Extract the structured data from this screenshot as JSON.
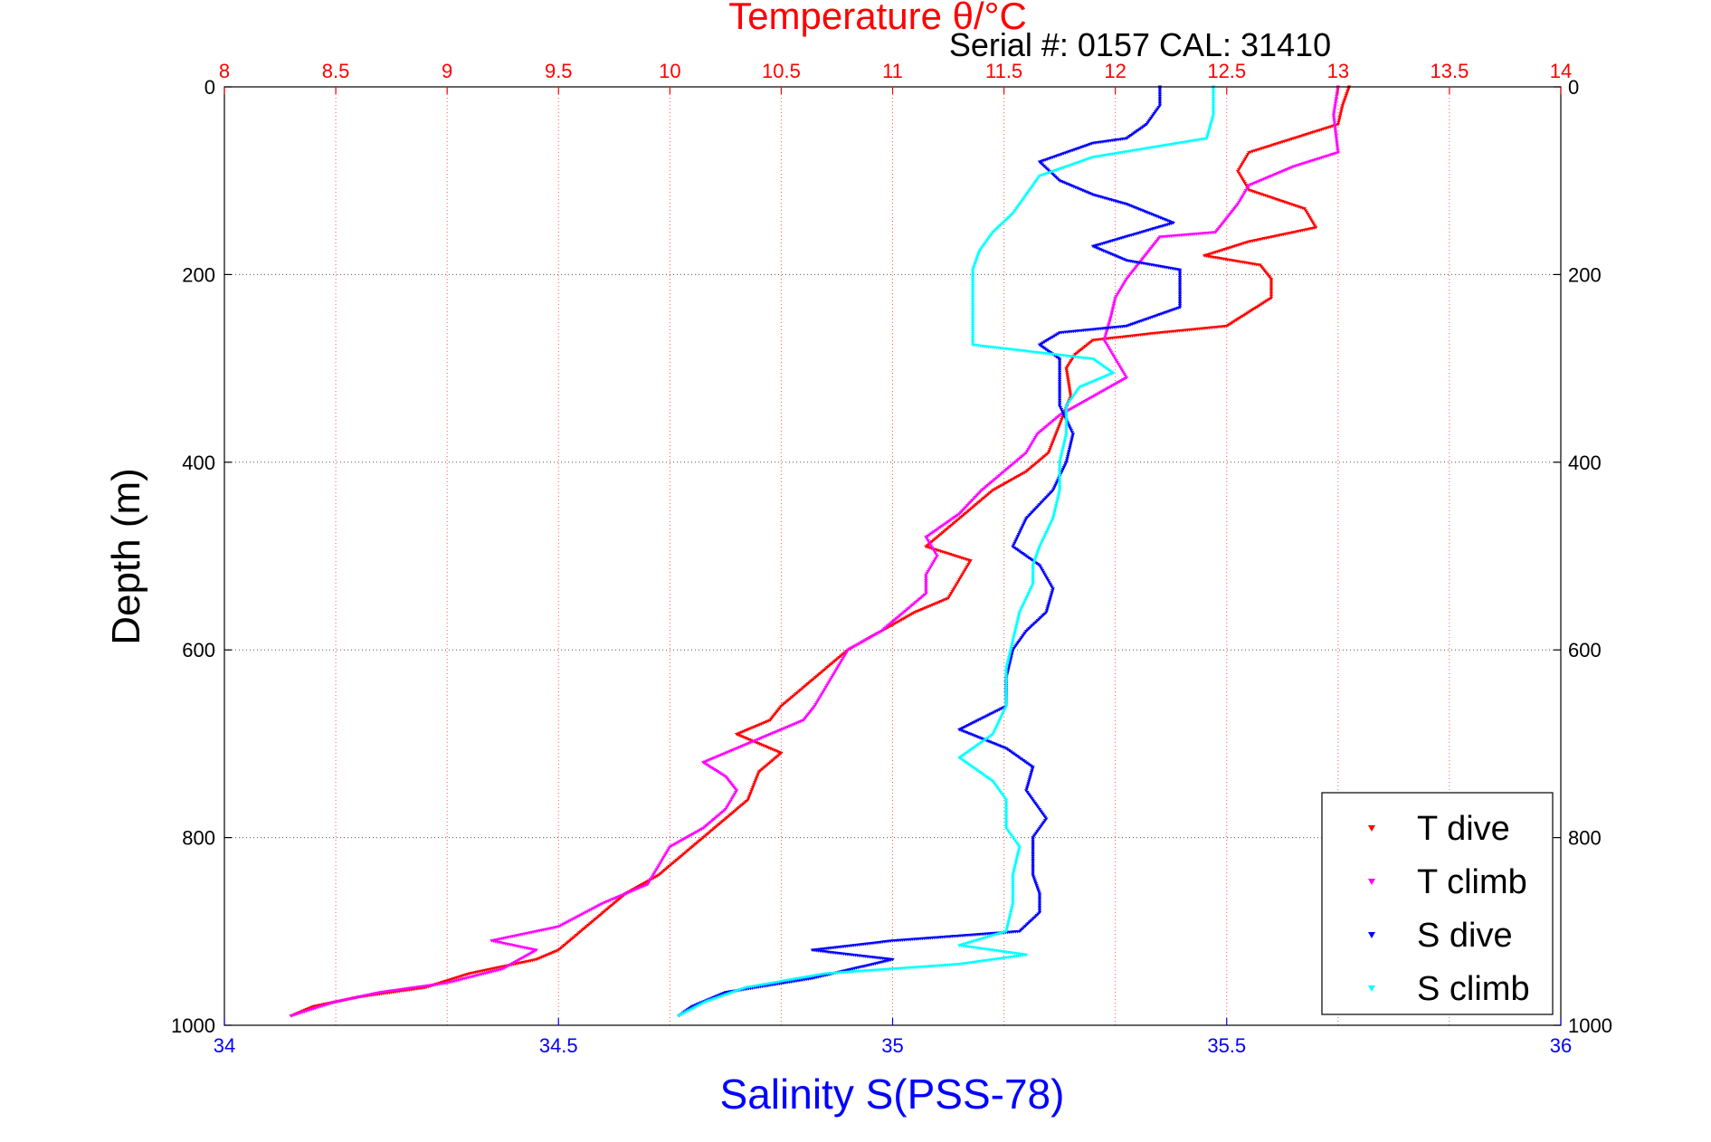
{
  "chart_data": {
    "type": "scatter",
    "title": "Temperature θ/°C",
    "subtitle": "Serial #: 0157  CAL: 31410",
    "xlabel_top": "Temperature θ/°C",
    "xlabel_bottom": "Salinity S(PSS-78)",
    "ylabel": "Depth (m)",
    "temperature_axis": {
      "range": [
        8,
        14
      ],
      "ticks": [
        "8",
        "8.5",
        "9",
        "9.5",
        "10",
        "10.5",
        "11",
        "11.5",
        "12",
        "12.5",
        "13",
        "13.5",
        "14"
      ],
      "color": "#ff0000"
    },
    "salinity_axis": {
      "range": [
        34,
        36
      ],
      "ticks": [
        "34",
        "34.5",
        "35",
        "35.5",
        "36"
      ],
      "color": "#0000ff"
    },
    "depth_axis": {
      "range": [
        0,
        1000
      ],
      "reversed": true,
      "ticks": [
        "0",
        "200",
        "400",
        "600",
        "800",
        "1000"
      ]
    },
    "grid": true,
    "legend_position": "bottom-right",
    "series": [
      {
        "name": "T dive",
        "axis": "temperature",
        "color": "#ff0000",
        "points": [
          [
            13.05,
            0
          ],
          [
            13.02,
            20
          ],
          [
            13.0,
            40
          ],
          [
            12.8,
            55
          ],
          [
            12.6,
            70
          ],
          [
            12.55,
            90
          ],
          [
            12.6,
            110
          ],
          [
            12.85,
            130
          ],
          [
            12.9,
            150
          ],
          [
            12.6,
            165
          ],
          [
            12.4,
            180
          ],
          [
            12.65,
            190
          ],
          [
            12.7,
            205
          ],
          [
            12.7,
            225
          ],
          [
            12.6,
            240
          ],
          [
            12.5,
            255
          ],
          [
            12.2,
            262
          ],
          [
            11.9,
            270
          ],
          [
            11.82,
            285
          ],
          [
            11.78,
            300
          ],
          [
            11.8,
            330
          ],
          [
            11.75,
            360
          ],
          [
            11.7,
            390
          ],
          [
            11.6,
            410
          ],
          [
            11.45,
            430
          ],
          [
            11.3,
            460
          ],
          [
            11.15,
            490
          ],
          [
            11.35,
            505
          ],
          [
            11.3,
            525
          ],
          [
            11.25,
            545
          ],
          [
            11.1,
            560
          ],
          [
            10.95,
            580
          ],
          [
            10.8,
            600
          ],
          [
            10.7,
            620
          ],
          [
            10.6,
            640
          ],
          [
            10.5,
            660
          ],
          [
            10.45,
            675
          ],
          [
            10.3,
            690
          ],
          [
            10.5,
            710
          ],
          [
            10.4,
            730
          ],
          [
            10.35,
            760
          ],
          [
            10.25,
            780
          ],
          [
            10.15,
            800
          ],
          [
            10.05,
            820
          ],
          [
            9.95,
            840
          ],
          [
            9.8,
            860
          ],
          [
            9.7,
            880
          ],
          [
            9.6,
            900
          ],
          [
            9.5,
            920
          ],
          [
            9.4,
            930
          ],
          [
            9.1,
            945
          ],
          [
            8.9,
            960
          ],
          [
            8.6,
            970
          ],
          [
            8.4,
            980
          ],
          [
            8.3,
            990
          ]
        ]
      },
      {
        "name": "T climb",
        "axis": "temperature",
        "color": "#ff00ff",
        "points": [
          [
            13.0,
            0
          ],
          [
            12.98,
            30
          ],
          [
            13.0,
            70
          ],
          [
            12.8,
            85
          ],
          [
            12.6,
            105
          ],
          [
            12.55,
            125
          ],
          [
            12.5,
            140
          ],
          [
            12.45,
            155
          ],
          [
            12.2,
            160
          ],
          [
            12.15,
            175
          ],
          [
            12.1,
            190
          ],
          [
            12.05,
            205
          ],
          [
            12.0,
            225
          ],
          [
            11.98,
            245
          ],
          [
            11.95,
            270
          ],
          [
            12.0,
            290
          ],
          [
            12.05,
            310
          ],
          [
            11.9,
            330
          ],
          [
            11.75,
            350
          ],
          [
            11.65,
            370
          ],
          [
            11.6,
            390
          ],
          [
            11.5,
            410
          ],
          [
            11.4,
            430
          ],
          [
            11.3,
            455
          ],
          [
            11.15,
            480
          ],
          [
            11.2,
            500
          ],
          [
            11.15,
            520
          ],
          [
            11.15,
            540
          ],
          [
            11.05,
            560
          ],
          [
            10.95,
            580
          ],
          [
            10.8,
            600
          ],
          [
            10.75,
            620
          ],
          [
            10.7,
            640
          ],
          [
            10.65,
            660
          ],
          [
            10.6,
            675
          ],
          [
            10.45,
            690
          ],
          [
            10.3,
            705
          ],
          [
            10.15,
            720
          ],
          [
            10.25,
            735
          ],
          [
            10.3,
            750
          ],
          [
            10.25,
            770
          ],
          [
            10.15,
            790
          ],
          [
            10.0,
            810
          ],
          [
            9.95,
            830
          ],
          [
            9.9,
            850
          ],
          [
            9.7,
            870
          ],
          [
            9.5,
            895
          ],
          [
            9.2,
            910
          ],
          [
            9.4,
            920
          ],
          [
            9.25,
            940
          ],
          [
            9.0,
            955
          ],
          [
            8.7,
            965
          ],
          [
            8.5,
            975
          ],
          [
            8.3,
            990
          ]
        ]
      },
      {
        "name": "S dive",
        "axis": "salinity",
        "color": "#0000ff",
        "points": [
          [
            35.4,
            0
          ],
          [
            35.4,
            20
          ],
          [
            35.38,
            40
          ],
          [
            35.35,
            55
          ],
          [
            35.3,
            60
          ],
          [
            35.22,
            80
          ],
          [
            35.25,
            100
          ],
          [
            35.3,
            115
          ],
          [
            35.35,
            125
          ],
          [
            35.42,
            145
          ],
          [
            35.3,
            170
          ],
          [
            35.35,
            185
          ],
          [
            35.43,
            195
          ],
          [
            35.43,
            215
          ],
          [
            35.43,
            235
          ],
          [
            35.35,
            255
          ],
          [
            35.25,
            262
          ],
          [
            35.22,
            275
          ],
          [
            35.25,
            290
          ],
          [
            35.25,
            320
          ],
          [
            35.25,
            340
          ],
          [
            35.27,
            370
          ],
          [
            35.26,
            400
          ],
          [
            35.24,
            430
          ],
          [
            35.2,
            460
          ],
          [
            35.18,
            490
          ],
          [
            35.22,
            510
          ],
          [
            35.24,
            535
          ],
          [
            35.23,
            560
          ],
          [
            35.2,
            580
          ],
          [
            35.18,
            600
          ],
          [
            35.17,
            630
          ],
          [
            35.17,
            660
          ],
          [
            35.1,
            685
          ],
          [
            35.17,
            705
          ],
          [
            35.21,
            725
          ],
          [
            35.2,
            750
          ],
          [
            35.23,
            780
          ],
          [
            35.21,
            800
          ],
          [
            35.21,
            820
          ],
          [
            35.21,
            840
          ],
          [
            35.22,
            860
          ],
          [
            35.22,
            880
          ],
          [
            35.19,
            900
          ],
          [
            35.0,
            910
          ],
          [
            34.88,
            920
          ],
          [
            35.0,
            930
          ],
          [
            34.88,
            950
          ],
          [
            34.75,
            965
          ],
          [
            34.7,
            980
          ],
          [
            34.68,
            990
          ]
        ]
      },
      {
        "name": "S climb",
        "axis": "salinity",
        "color": "#00ffff",
        "points": [
          [
            35.48,
            0
          ],
          [
            35.48,
            30
          ],
          [
            35.47,
            55
          ],
          [
            35.3,
            75
          ],
          [
            35.22,
            95
          ],
          [
            35.2,
            115
          ],
          [
            35.18,
            135
          ],
          [
            35.15,
            155
          ],
          [
            35.13,
            175
          ],
          [
            35.12,
            195
          ],
          [
            35.12,
            220
          ],
          [
            35.12,
            250
          ],
          [
            35.12,
            275
          ],
          [
            35.3,
            290
          ],
          [
            35.33,
            305
          ],
          [
            35.28,
            320
          ],
          [
            35.26,
            340
          ],
          [
            35.26,
            370
          ],
          [
            35.25,
            400
          ],
          [
            35.25,
            430
          ],
          [
            35.24,
            460
          ],
          [
            35.22,
            490
          ],
          [
            35.21,
            510
          ],
          [
            35.21,
            530
          ],
          [
            35.19,
            560
          ],
          [
            35.18,
            590
          ],
          [
            35.17,
            620
          ],
          [
            35.17,
            660
          ],
          [
            35.15,
            690
          ],
          [
            35.1,
            715
          ],
          [
            35.15,
            740
          ],
          [
            35.17,
            760
          ],
          [
            35.17,
            790
          ],
          [
            35.19,
            810
          ],
          [
            35.18,
            840
          ],
          [
            35.18,
            870
          ],
          [
            35.17,
            900
          ],
          [
            35.1,
            915
          ],
          [
            35.2,
            925
          ],
          [
            35.1,
            935
          ],
          [
            34.9,
            945
          ],
          [
            34.78,
            960
          ],
          [
            34.72,
            975
          ],
          [
            34.68,
            990
          ]
        ]
      }
    ]
  }
}
